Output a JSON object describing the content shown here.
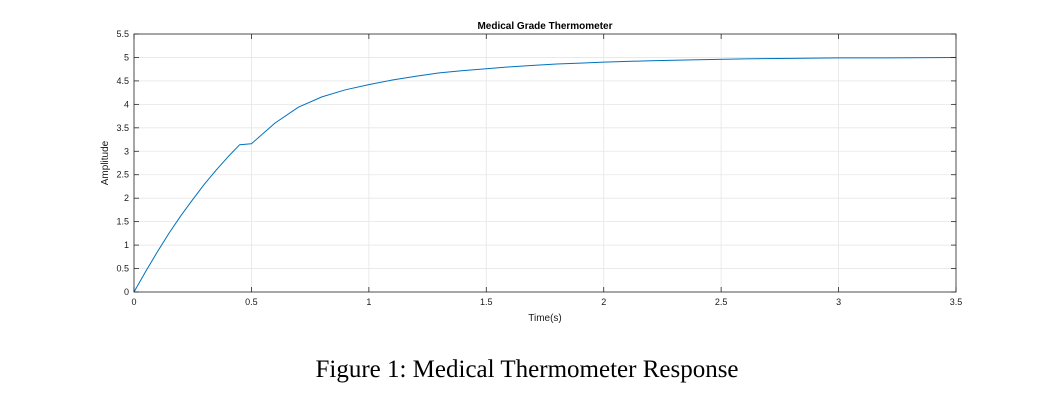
{
  "chart_data": {
    "type": "line",
    "title": "Medical Grade Thermometer",
    "xlabel": "Time(s)",
    "ylabel": "Amplitude",
    "xlim": [
      0,
      3.5
    ],
    "ylim": [
      0,
      5.5
    ],
    "xticks": [
      0,
      0.5,
      1,
      1.5,
      2,
      2.5,
      3,
      3.5
    ],
    "xtick_labels": [
      "0",
      "0.5",
      "1",
      "1.5",
      "2",
      "2.5",
      "3",
      "3.5"
    ],
    "yticks": [
      0,
      0.5,
      1,
      1.5,
      2,
      2.5,
      3,
      3.5,
      4,
      4.5,
      5,
      5.5
    ],
    "ytick_labels": [
      "0",
      "0.5",
      "1",
      "1.5",
      "2",
      "2.5",
      "3",
      "3.5",
      "4",
      "4.5",
      "5",
      "5.5"
    ],
    "grid": true,
    "series": [
      {
        "color": "#0072bd",
        "x": [
          0,
          0.05,
          0.1,
          0.15,
          0.2,
          0.25,
          0.3,
          0.35,
          0.4,
          0.45,
          0.5,
          0.6,
          0.7,
          0.8,
          0.9,
          1.0,
          1.1,
          1.2,
          1.3,
          1.4,
          1.5,
          1.6,
          1.7,
          1.8,
          1.9,
          2.0,
          2.2,
          2.4,
          2.6,
          2.8,
          3.0,
          3.2,
          3.5
        ],
        "y": [
          0,
          0.44,
          0.86,
          1.26,
          1.63,
          1.97,
          2.3,
          2.6,
          2.88,
          3.14,
          3.16,
          3.6,
          3.94,
          4.16,
          4.31,
          4.42,
          4.52,
          4.6,
          4.67,
          4.72,
          4.76,
          4.8,
          4.83,
          4.86,
          4.88,
          4.9,
          4.93,
          4.95,
          4.97,
          4.98,
          4.99,
          4.99,
          5.0
        ]
      }
    ]
  },
  "figure": {
    "caption": "Figure 1: Medical Thermometer Response"
  }
}
